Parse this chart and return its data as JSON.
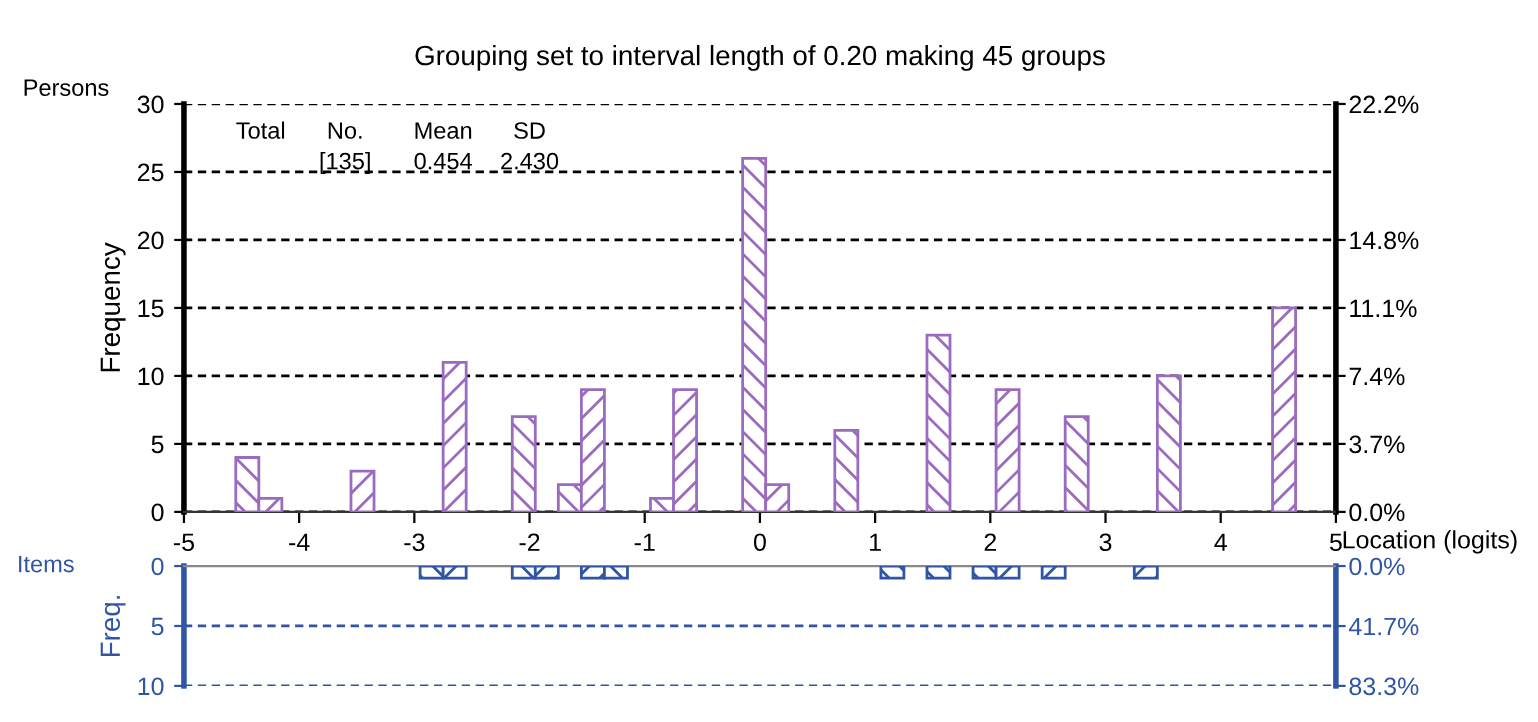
{
  "chart_data": [
    {
      "type": "histogram",
      "title": "Grouping set to interval length of 0.20 making 45 groups",
      "xlabel": "Location (logits)",
      "ylabel": "Frequency",
      "bins": [
        -4.55,
        -4.35,
        -4.15,
        -3.95,
        -3.75,
        -3.55,
        -3.35,
        -3.15,
        -2.95,
        -2.75,
        -2.55,
        -2.35,
        -2.15,
        -1.95,
        -1.75,
        -1.55,
        -1.35,
        -1.15,
        -0.95,
        -0.75,
        -0.55,
        -0.35,
        -0.15,
        0.05,
        0.25,
        0.45,
        0.65,
        0.85,
        1.05,
        1.25,
        1.45,
        1.65,
        1.85,
        2.05,
        2.25,
        2.45,
        2.65,
        2.85,
        3.05,
        3.25,
        3.45,
        3.65,
        3.85,
        4.05,
        4.25,
        4.45,
        4.65
      ],
      "values": [
        4,
        1,
        0,
        0,
        0,
        3,
        0,
        0,
        0,
        11,
        0,
        0,
        7,
        0,
        2,
        9,
        0,
        0,
        1,
        9,
        0,
        0,
        26,
        2,
        0,
        0,
        6,
        0,
        0,
        0,
        13,
        0,
        0,
        9,
        0,
        0,
        7,
        0,
        0,
        0,
        10,
        0,
        0,
        0,
        0,
        15
      ],
      "color": "#9b6bbf",
      "xlim": [
        -5,
        5
      ],
      "xticks": [
        -5,
        -4,
        -3,
        -2,
        -1,
        0,
        1,
        2,
        3,
        4,
        5
      ],
      "ylim": [
        0,
        30
      ],
      "yticks": [
        0,
        5,
        10,
        15,
        20,
        25,
        30
      ],
      "y2lim": [
        0,
        22.2
      ],
      "y2ticks": [
        {
          "value": 0,
          "label": "0.0%"
        },
        {
          "value": 3.7,
          "label": "3.7%"
        },
        {
          "value": 7.4,
          "label": "7.4%"
        },
        {
          "value": 11.1,
          "label": "11.1%"
        },
        {
          "value": 14.8,
          "label": "14.8%"
        },
        {
          "value": 22.2,
          "label": "22.2%"
        }
      ],
      "grid": "y",
      "annotations": [
        "Persons",
        "Total",
        "No.",
        "[135]",
        "Mean",
        "0.454",
        "SD",
        "2.430"
      ]
    },
    {
      "type": "histogram",
      "ylabel": "Freq.",
      "bins": [
        -2.95,
        -2.75,
        -2.55,
        -2.35,
        -2.15,
        -1.95,
        -1.75,
        -1.55,
        -1.35,
        -1.15,
        -0.95,
        -0.75,
        -0.55,
        -0.35,
        -0.15,
        0.05,
        0.25,
        0.45,
        0.65,
        0.85,
        1.05,
        1.25,
        1.45,
        1.65,
        1.85,
        2.05,
        2.25,
        2.45,
        2.65,
        2.85,
        3.05,
        3.25,
        3.45
      ],
      "values": [
        1,
        1,
        0,
        0,
        1,
        1,
        0,
        1,
        1,
        0,
        0,
        0,
        0,
        0,
        0,
        0,
        0,
        0,
        0,
        0,
        1,
        0,
        1,
        0,
        1,
        1,
        0,
        1,
        0,
        0,
        0,
        1
      ],
      "color": "#2f55a4",
      "xlim": [
        -5,
        5
      ],
      "xticks": [
        -5,
        -4,
        -3,
        -2,
        -1,
        0,
        1,
        2,
        3,
        4,
        5
      ],
      "ylim": [
        10,
        0
      ],
      "yticks": [
        0,
        5,
        10
      ],
      "y2lim": [
        83.3,
        0
      ],
      "y2ticks": [
        {
          "value": 0,
          "label": "0.0%"
        },
        {
          "value": 41.7,
          "label": "41.7%"
        },
        {
          "value": 83.3,
          "label": "83.3%"
        }
      ],
      "ref_lines": [
        {
          "axis": "y",
          "value": 5,
          "line_style": "dashed"
        },
        {
          "axis": "y",
          "value": 10,
          "line_style": "dashed"
        }
      ],
      "tick_labels": "y",
      "annotations": [
        "Items"
      ]
    }
  ]
}
